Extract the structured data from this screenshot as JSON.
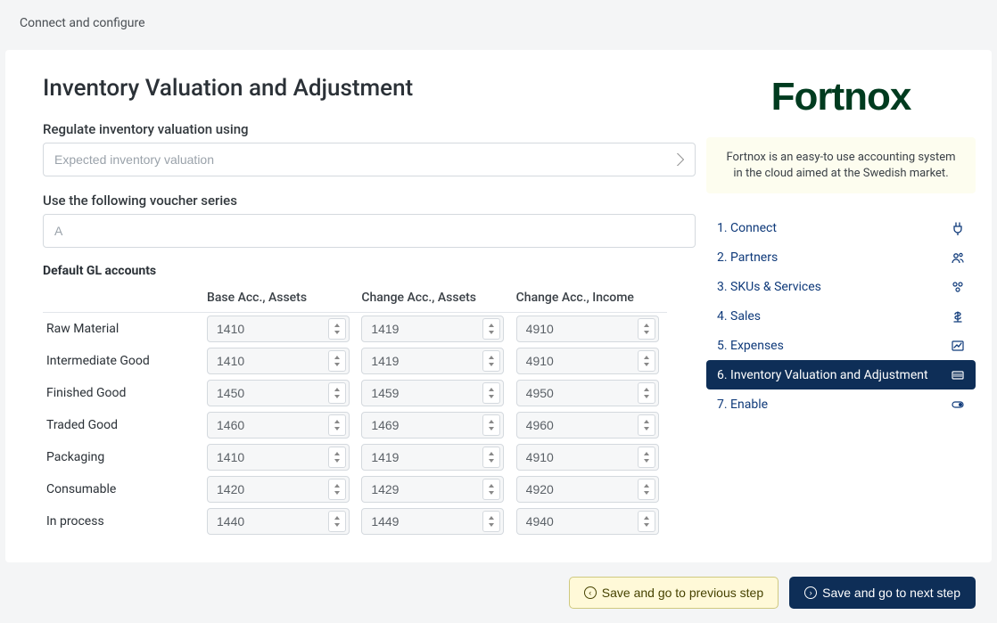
{
  "header": {
    "title": "Connect and configure"
  },
  "main": {
    "title": "Inventory Valuation and Adjustment",
    "regulate_label": "Regulate inventory valuation using",
    "regulate_value": "Expected inventory valuation",
    "voucher_label": "Use the following voucher series",
    "voucher_value": "A",
    "gl_section_label": "Default GL accounts",
    "gl_columns": {
      "rowname": "",
      "base_assets": "Base Acc., Assets",
      "change_assets": "Change Acc., Assets",
      "change_income": "Change Acc., Income"
    },
    "gl_rows": [
      {
        "name": "Raw Material",
        "base": "1410",
        "changeA": "1419",
        "changeI": "4910"
      },
      {
        "name": "Intermediate Good",
        "base": "1410",
        "changeA": "1419",
        "changeI": "4910"
      },
      {
        "name": "Finished Good",
        "base": "1450",
        "changeA": "1459",
        "changeI": "4950"
      },
      {
        "name": "Traded Good",
        "base": "1460",
        "changeA": "1469",
        "changeI": "4960"
      },
      {
        "name": "Packaging",
        "base": "1410",
        "changeA": "1419",
        "changeI": "4910"
      },
      {
        "name": "Consumable",
        "base": "1420",
        "changeA": "1429",
        "changeI": "4920"
      },
      {
        "name": "In process",
        "base": "1440",
        "changeA": "1449",
        "changeI": "4940"
      }
    ]
  },
  "sidebar": {
    "brand_text": "Fortnox",
    "brand_color": "#003b1f",
    "desc": "Fortnox is an easy-to use accounting system in the cloud aimed at the Swedish market.",
    "steps": [
      {
        "label": "1. Connect",
        "icon": "plug",
        "active": false
      },
      {
        "label": "2. Partners",
        "icon": "users",
        "active": false
      },
      {
        "label": "3. SKUs & Services",
        "icon": "box",
        "active": false
      },
      {
        "label": "4. Sales",
        "icon": "cash",
        "active": false
      },
      {
        "label": "5. Expenses",
        "icon": "chart",
        "active": false
      },
      {
        "label": "6. Inventory Valuation and Adjustment",
        "icon": "barcode",
        "active": true
      },
      {
        "label": "7. Enable",
        "icon": "toggle",
        "active": false
      }
    ]
  },
  "footer": {
    "prev_label": "Save and go to previous step",
    "next_label": "Save and go to next step"
  },
  "colors": {
    "page_bg": "#f4f5f6",
    "panel_bg": "#ffffff",
    "nav_active_bg": "#0e2e57",
    "nav_link": "#0f3a7a",
    "btn_prev_bg": "#fff9d8",
    "btn_prev_border": "#cfc980",
    "desc_bg": "#fdfdef"
  }
}
